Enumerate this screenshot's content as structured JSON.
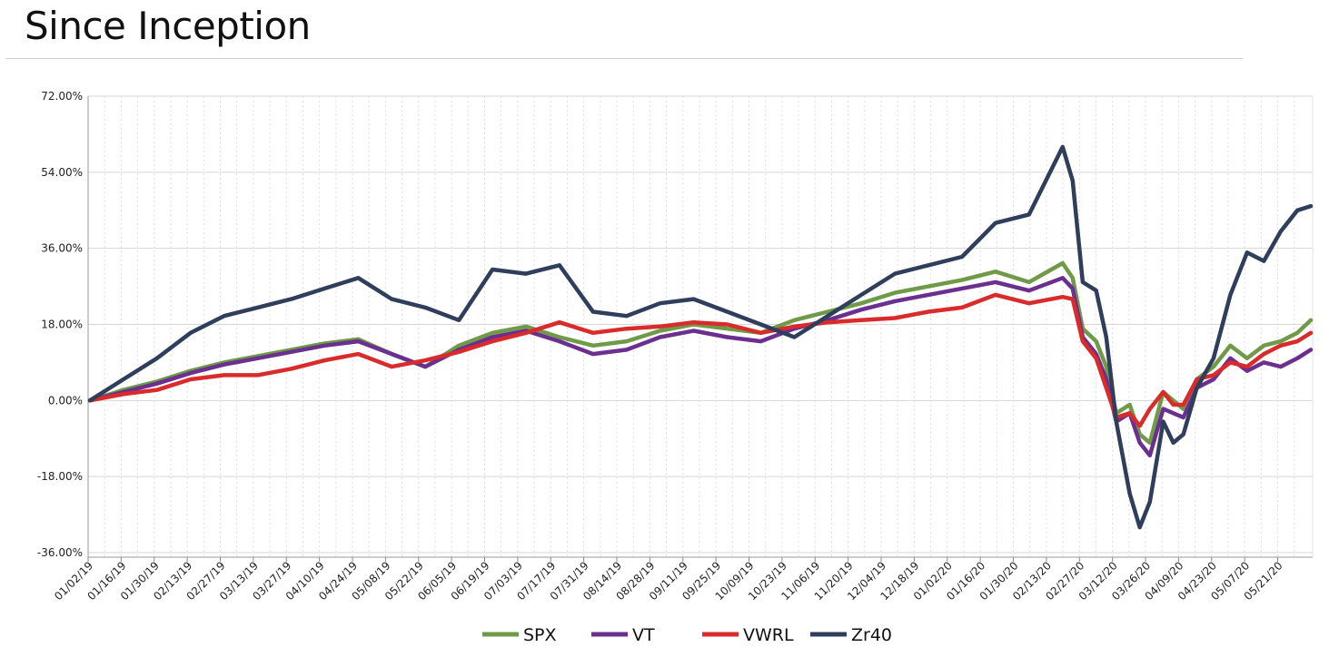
{
  "page": {
    "title": "Since Inception"
  },
  "chart_data": {
    "type": "line",
    "ylim": [
      -36,
      72
    ],
    "y_ticks": [
      72,
      54,
      36,
      18,
      0,
      -18,
      -36
    ],
    "y_tick_labels": [
      "72.00%",
      "54.00%",
      "36.00%",
      "18.00%",
      "0.00%",
      "-18.00%",
      "-36.00%"
    ],
    "grid": true,
    "legend_position": "bottom-center",
    "x_tick_labels": [
      "01/02/19",
      "01/16/19",
      "01/30/19",
      "02/13/19",
      "02/27/19",
      "03/13/19",
      "03/27/19",
      "04/10/19",
      "04/24/19",
      "05/08/19",
      "05/22/19",
      "06/05/19",
      "06/19/19",
      "07/03/19",
      "07/17/19",
      "07/31/19",
      "08/14/19",
      "08/28/19",
      "09/11/19",
      "09/25/19",
      "10/09/19",
      "10/23/19",
      "11/06/19",
      "11/20/19",
      "12/04/19",
      "12/18/19",
      "01/02/20",
      "01/16/20",
      "01/30/20",
      "02/13/20",
      "02/27/20",
      "03/12/20",
      "03/26/20",
      "04/09/20",
      "04/23/20",
      "05/07/20",
      "05/21/20"
    ],
    "x": [
      0,
      1,
      2,
      3,
      4,
      5,
      6,
      7,
      8,
      9,
      10,
      11,
      12,
      13,
      14,
      15,
      16,
      17,
      18,
      19,
      20,
      21,
      22,
      23,
      24,
      25,
      26,
      27,
      28,
      29,
      29.3,
      29.6,
      30,
      30.3,
      30.6,
      31,
      31.3,
      31.6,
      32,
      32.3,
      32.6,
      33,
      33.5,
      34,
      34.5,
      35,
      35.5,
      36,
      36.4
    ],
    "series": [
      {
        "name": "SPX",
        "color": "#6f9a47",
        "values": [
          0,
          2.5,
          4.5,
          7,
          9,
          10.5,
          12,
          13.5,
          14.5,
          11,
          8,
          13,
          16,
          17.5,
          15,
          13,
          14,
          16.5,
          18,
          17,
          16,
          19,
          21,
          23,
          25.5,
          27,
          28.5,
          30.5,
          28,
          32.5,
          29,
          17,
          14,
          8,
          -3,
          -1,
          -8,
          -10,
          2,
          0,
          -2,
          5,
          8,
          13,
          10,
          13,
          14,
          16,
          19
        ]
      },
      {
        "name": "VT",
        "color": "#6b2f8f",
        "values": [
          0,
          2,
          4,
          6.5,
          8.5,
          10,
          11.5,
          13,
          14,
          11,
          8,
          12,
          15,
          16.5,
          14,
          11,
          12,
          15,
          16.5,
          15,
          14,
          17,
          19,
          21.5,
          23.5,
          25,
          26.5,
          28,
          26,
          29,
          26.5,
          15,
          11,
          5,
          -5,
          -3,
          -10,
          -13,
          -2,
          -3,
          -4,
          3,
          5,
          10,
          7,
          9,
          8,
          10,
          12
        ]
      },
      {
        "name": "VWRL",
        "color": "#d92b2b",
        "values": [
          0,
          1.5,
          2.5,
          5,
          6,
          6,
          7.5,
          9.5,
          11,
          8,
          9.5,
          11.5,
          14,
          16,
          18.5,
          16,
          17,
          17.5,
          18.5,
          18,
          16,
          17.5,
          18.5,
          19,
          19.5,
          21,
          22,
          25,
          23,
          24.5,
          24,
          14,
          10,
          3,
          -4,
          -3,
          -6,
          -2,
          2,
          -1,
          -1,
          5,
          6,
          9,
          8,
          11,
          13,
          14,
          16
        ]
      },
      {
        "name": "Zr40",
        "color": "#2f3e5b",
        "values": [
          0,
          5,
          10,
          16,
          20,
          22,
          24,
          26.5,
          29,
          24,
          22,
          19,
          31,
          30,
          32,
          21,
          20,
          23,
          24,
          21,
          18,
          15,
          20,
          25,
          30,
          32,
          34,
          42,
          44,
          60,
          52,
          28,
          26,
          15,
          -5,
          -22,
          -30,
          -24,
          -5,
          -10,
          -8,
          3,
          10,
          25,
          35,
          33,
          40,
          45,
          46
        ]
      }
    ]
  }
}
